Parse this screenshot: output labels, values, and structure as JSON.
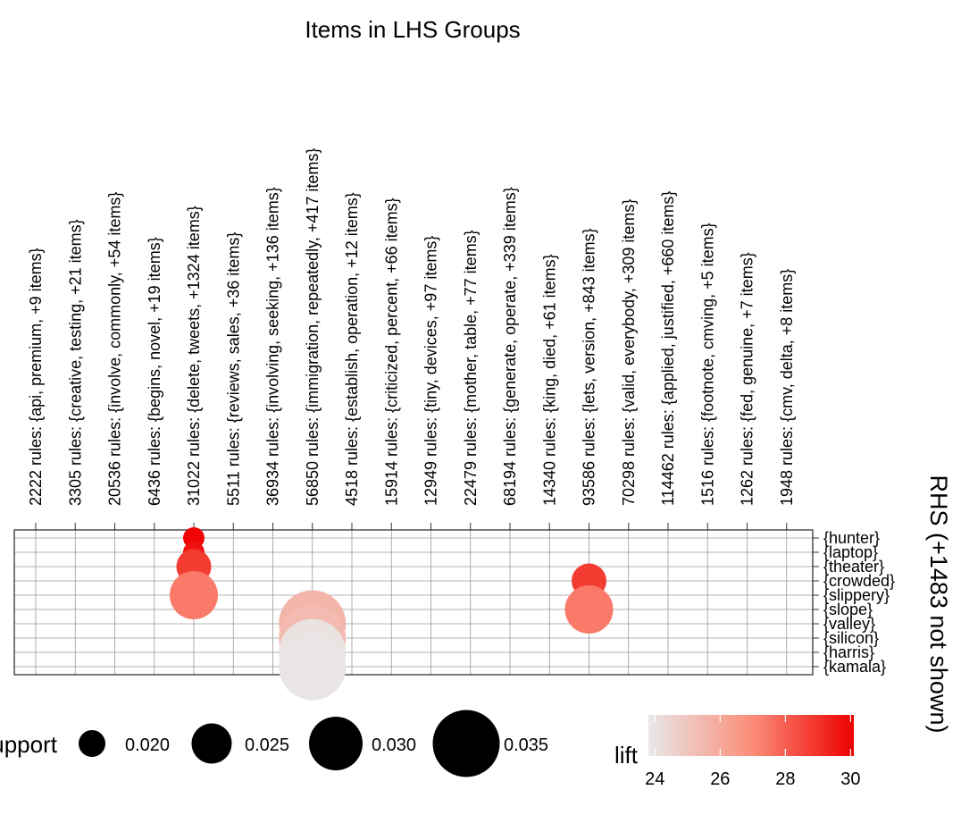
{
  "chart_data": {
    "type": "scatter",
    "title": "Items in LHS Groups",
    "y_axis_title": "RHS (+1483 not shown)",
    "lhs_groups": [
      "2222 rules: {api, premium, +9 items}",
      "3305 rules: {creative, testing, +21 items}",
      "20536 rules: {involve, commonly, +54 items}",
      "6436 rules: {begins, novel, +19 items}",
      "31022 rules: {delete, tweets, +1324 items}",
      "5511 rules: {reviews, sales, +36 items}",
      "36934 rules: {involving, seeking, +136 items}",
      "56850 rules: {immigration, repeatedly, +417 items}",
      "4518 rules: {establish, operation, +12 items}",
      "15914 rules: {criticized, percent, +66 items}",
      "12949 rules: {tiny, devices, +97 items}",
      "22479 rules: {mother, table, +77 items}",
      "68194 rules: {generate, operate, +339 items}",
      "14340 rules: {king, died, +61 items}",
      "93586 rules: {lets, version, +843 items}",
      "70298 rules: {valid, everybody, +309 items}",
      "114462 rules: {applied, justified, +660 items}",
      "1516 rules: {footnote, cmving, +5 items}",
      "1262 rules: {fed, genuine, +7 items}",
      "1948 rules: {cmv, delta, +8 items}"
    ],
    "rhs_items": [
      "{hunter}",
      "{laptop}",
      "{theater}",
      "{crowded}",
      "{slippery}",
      "{slope}",
      "{valley}",
      "{silicon}",
      "{harris}",
      "{kamala}"
    ],
    "points": [
      {
        "lhs": 4,
        "rhs": 0,
        "support": 0.018,
        "lift": 30.0
      },
      {
        "lhs": 4,
        "rhs": 1,
        "support": 0.018,
        "lift": 29.7
      },
      {
        "lhs": 4,
        "rhs": 2,
        "support": 0.023,
        "lift": 28.8
      },
      {
        "lhs": 4,
        "rhs": 4,
        "support": 0.028,
        "lift": 27.4
      },
      {
        "lhs": 14,
        "rhs": 3,
        "support": 0.023,
        "lift": 28.8
      },
      {
        "lhs": 14,
        "rhs": 5,
        "support": 0.028,
        "lift": 27.4
      },
      {
        "lhs": 7,
        "rhs": 6,
        "support": 0.035,
        "lift": 25.6
      },
      {
        "lhs": 7,
        "rhs": 7,
        "support": 0.035,
        "lift": 25.4
      },
      {
        "lhs": 7,
        "rhs": 8,
        "support": 0.035,
        "lift": 24.0
      },
      {
        "lhs": 7,
        "rhs": 9,
        "support": 0.035,
        "lift": 23.9
      }
    ],
    "size_legend": {
      "title": "support",
      "values": [
        0.02,
        0.025,
        0.03,
        0.035
      ],
      "labels": [
        "0.020",
        "0.025",
        "0.030",
        "0.035"
      ]
    },
    "color_legend": {
      "title": "lift",
      "min": 23.8,
      "max": 30.1,
      "ticks": [
        24,
        26,
        28,
        30
      ],
      "tick_labels": [
        "24",
        "26",
        "28",
        "30"
      ],
      "low_color": "#e8e8e8",
      "high_color": "#ee0000"
    },
    "grid": true
  }
}
